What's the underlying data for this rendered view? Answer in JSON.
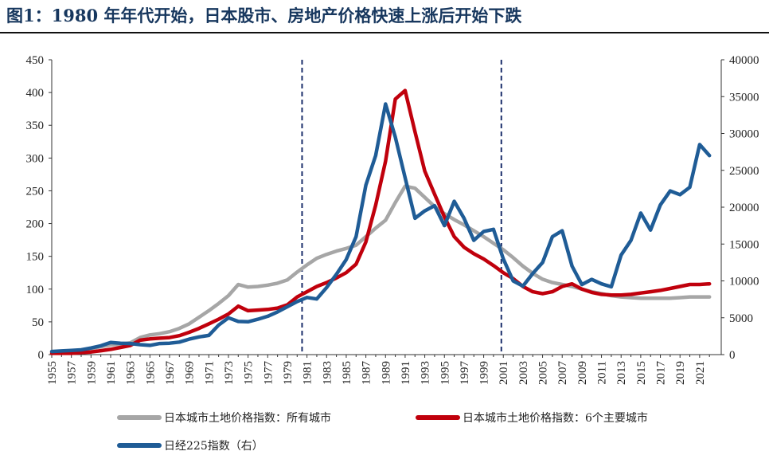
{
  "title": "图1：1980 年年代开始，日本股市、房地产价格快速上涨后开始下跌",
  "chart_data": {
    "type": "line",
    "ylim_left": [
      0,
      450
    ],
    "ylim_right": [
      0,
      40000
    ],
    "yticks_left": [
      "0",
      "50",
      "100",
      "150",
      "200",
      "250",
      "300",
      "350",
      "400",
      "450"
    ],
    "yticks_right": [
      "0",
      "5000",
      "10000",
      "15000",
      "20000",
      "25000",
      "30000",
      "35000",
      "40000"
    ],
    "xlim": [
      1955,
      2022
    ],
    "xticks": [
      "1955",
      "1957",
      "1959",
      "1961",
      "1963",
      "1965",
      "1967",
      "1969",
      "1971",
      "1973",
      "1975",
      "1977",
      "1979",
      "1981",
      "1983",
      "1985",
      "1987",
      "1989",
      "1991",
      "1993",
      "1995",
      "1997",
      "1999",
      "2001",
      "2003",
      "2005",
      "2007",
      "2009",
      "2011",
      "2013",
      "2015",
      "2017",
      "2019",
      "2021"
    ],
    "vlines": [
      1980.5,
      2000.8
    ],
    "legend": "bottom",
    "series": [
      {
        "name": "日本城市土地价格指数：所有城市",
        "color": "#a6a6a6",
        "axis": "left",
        "x": [
          1955,
          1956,
          1957,
          1958,
          1959,
          1960,
          1961,
          1962,
          1963,
          1964,
          1965,
          1966,
          1967,
          1968,
          1969,
          1970,
          1971,
          1972,
          1973,
          1974,
          1975,
          1976,
          1977,
          1978,
          1979,
          1980,
          1981,
          1982,
          1983,
          1984,
          1985,
          1986,
          1987,
          1988,
          1989,
          1990,
          1991,
          1992,
          1993,
          1994,
          1995,
          1996,
          1997,
          1998,
          1999,
          2000,
          2001,
          2002,
          2003,
          2004,
          2005,
          2006,
          2007,
          2008,
          2009,
          2010,
          2011,
          2012,
          2013,
          2014,
          2015,
          2016,
          2017,
          2018,
          2019,
          2020,
          2021,
          2022
        ],
        "values": [
          4,
          5,
          6,
          7,
          9,
          12,
          15,
          16,
          18,
          26,
          30,
          32,
          35,
          40,
          47,
          57,
          67,
          78,
          90,
          107,
          103,
          104,
          106,
          109,
          114,
          126,
          137,
          147,
          153,
          158,
          162,
          167,
          180,
          193,
          205,
          232,
          257,
          254,
          240,
          226,
          215,
          206,
          198,
          189,
          180,
          170,
          160,
          148,
          135,
          124,
          115,
          110,
          107,
          104,
          100,
          96,
          93,
          90,
          88,
          87,
          86,
          86,
          86,
          86,
          87,
          88,
          88,
          88
        ]
      },
      {
        "name": "日本城市土地价格指数：6个主要城市",
        "color": "#c0000c",
        "axis": "left",
        "x": [
          1955,
          1956,
          1957,
          1958,
          1959,
          1960,
          1961,
          1962,
          1963,
          1964,
          1965,
          1966,
          1967,
          1968,
          1969,
          1970,
          1971,
          1972,
          1973,
          1974,
          1975,
          1976,
          1977,
          1978,
          1979,
          1980,
          1981,
          1982,
          1983,
          1984,
          1985,
          1986,
          1987,
          1988,
          1989,
          1990,
          1991,
          1992,
          1993,
          1994,
          1995,
          1996,
          1997,
          1998,
          1999,
          2000,
          2001,
          2002,
          2003,
          2004,
          2005,
          2006,
          2007,
          2008,
          2009,
          2010,
          2011,
          2012,
          2013,
          2014,
          2015,
          2016,
          2017,
          2018,
          2019,
          2020,
          2021,
          2022
        ],
        "values": [
          2,
          2,
          2,
          3,
          4,
          6,
          8,
          11,
          14,
          22,
          24,
          25,
          26,
          29,
          34,
          40,
          47,
          54,
          62,
          74,
          67,
          68,
          69,
          71,
          76,
          88,
          96,
          104,
          110,
          117,
          125,
          138,
          172,
          228,
          295,
          390,
          403,
          340,
          280,
          245,
          210,
          180,
          164,
          154,
          146,
          136,
          125,
          116,
          104,
          96,
          93,
          96,
          104,
          108,
          100,
          95,
          92,
          91,
          91,
          92,
          94,
          96,
          98,
          101,
          104,
          107,
          107,
          108
        ]
      },
      {
        "name": "日经225指数（右）",
        "color": "#1f5c96",
        "axis": "right",
        "x": [
          1955,
          1956,
          1957,
          1958,
          1959,
          1960,
          1961,
          1962,
          1963,
          1964,
          1965,
          1966,
          1967,
          1968,
          1969,
          1970,
          1971,
          1972,
          1973,
          1974,
          1975,
          1976,
          1977,
          1978,
          1979,
          1980,
          1981,
          1982,
          1983,
          1984,
          1985,
          1986,
          1987,
          1988,
          1989,
          1990,
          1991,
          1992,
          1993,
          1994,
          1995,
          1996,
          1997,
          1998,
          1999,
          2000,
          2001,
          2002,
          2003,
          2004,
          2005,
          2006,
          2007,
          2008,
          2009,
          2010,
          2011,
          2012,
          2013,
          2014,
          2015,
          2016,
          2017,
          2018,
          2019,
          2020,
          2021,
          2022
        ],
        "values": [
          420,
          500,
          560,
          650,
          900,
          1200,
          1650,
          1550,
          1500,
          1350,
          1250,
          1500,
          1550,
          1700,
          2100,
          2400,
          2600,
          4000,
          5000,
          4500,
          4450,
          4800,
          5200,
          5800,
          6500,
          7200,
          7750,
          7550,
          9100,
          10900,
          12900,
          16000,
          23000,
          27000,
          34000,
          29500,
          24000,
          18500,
          19500,
          20200,
          17500,
          20800,
          18500,
          15500,
          16700,
          17000,
          13000,
          10000,
          9300,
          11000,
          12500,
          16000,
          16800,
          12000,
          9500,
          10200,
          9600,
          9200,
          13500,
          15500,
          19200,
          16900,
          20300,
          22200,
          21700,
          22700,
          28500,
          27000
        ]
      }
    ]
  }
}
